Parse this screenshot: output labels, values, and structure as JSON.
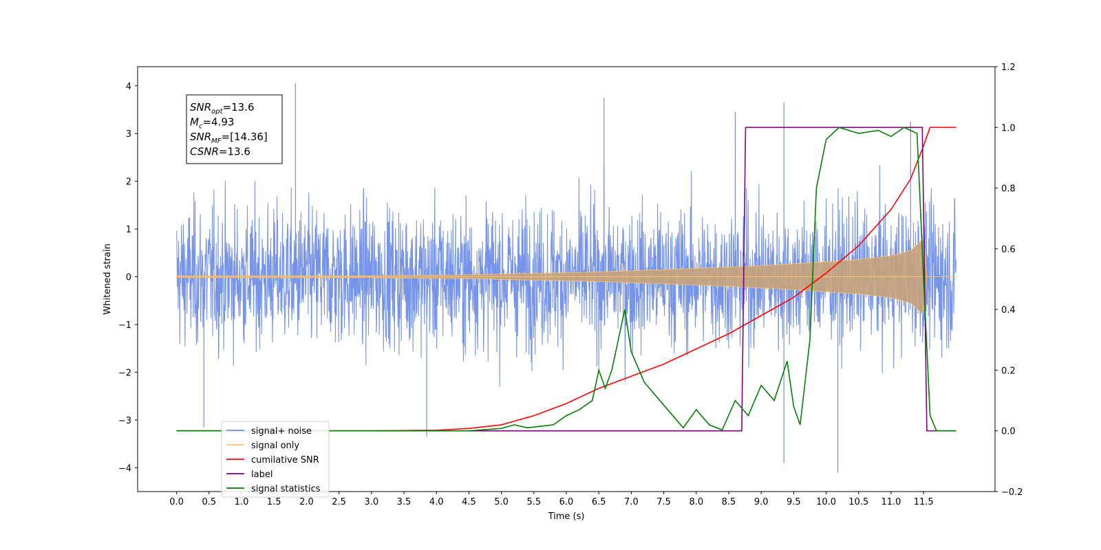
{
  "chart_data": {
    "type": "line",
    "xlabel": "Time (s)",
    "ylabel": "Whitened strain",
    "xlim": [
      -0.6,
      12.6
    ],
    "ylim": [
      -4.5,
      4.4
    ],
    "ylim_right": [
      -0.2,
      1.2
    ],
    "x_ticks": [
      "0.0",
      "0.5",
      "1.0",
      "1.5",
      "2.0",
      "2.5",
      "3.0",
      "3.5",
      "4.0",
      "4.5",
      "5.0",
      "5.5",
      "6.0",
      "6.5",
      "7.0",
      "7.5",
      "8.0",
      "8.5",
      "9.0",
      "9.5",
      "10.0",
      "10.5",
      "11.0",
      "11.5"
    ],
    "y_ticks_left": [
      "4",
      "3",
      "2",
      "1",
      "0",
      "−1",
      "−2",
      "−3",
      "−4"
    ],
    "y_ticks_right": [
      "1.2",
      "1.0",
      "0.8",
      "0.6",
      "0.4",
      "0.2",
      "0.0",
      "−0.2"
    ],
    "grid": false,
    "legend_position": "lower-left",
    "legend": [
      {
        "name": "signal+ noise",
        "color": "#6f8ee8"
      },
      {
        "name": "signal only",
        "color": "#ffc46b"
      },
      {
        "name": "cumilative SNR",
        "color": "#ff0000"
      },
      {
        "name": "label",
        "color": "#7b007b"
      },
      {
        "name": "signal statistics",
        "color": "#007f00"
      }
    ],
    "annotation": {
      "lines": [
        {
          "main": "SNR",
          "sub": "opt",
          "rest": "=13.6"
        },
        {
          "main": "M",
          "sub": "c",
          "rest": "=4.93"
        },
        {
          "main": "SNR",
          "sub": "MF",
          "rest": "=[14.36]"
        },
        {
          "main": "CSNR",
          "sub": "",
          "rest": "=13.6"
        }
      ]
    },
    "series": [
      {
        "name": "signal+ noise",
        "axis": "left",
        "color": "#6f8ee8",
        "x_range": [
          0.0,
          12.0
        ],
        "typical_amplitude": 1.6,
        "extreme_peaks": [
          {
            "x": 1.83,
            "y": 4.05
          },
          {
            "x": 6.58,
            "y": 3.75
          },
          {
            "x": 9.35,
            "y": 3.65
          },
          {
            "x": 8.6,
            "y": 3.45
          },
          {
            "x": 11.3,
            "y": 3.25
          },
          {
            "x": 9.35,
            "y": -3.9
          },
          {
            "x": 10.18,
            "y": -4.1
          },
          {
            "x": 3.85,
            "y": -3.35
          },
          {
            "x": 0.42,
            "y": -3.15
          }
        ]
      },
      {
        "name": "signal only",
        "axis": "left",
        "color": "#ffc46b",
        "envelope": [
          {
            "x": 0.0,
            "y": 0.02
          },
          {
            "x": 3.0,
            "y": 0.02
          },
          {
            "x": 4.5,
            "y": 0.04
          },
          {
            "x": 5.5,
            "y": 0.07
          },
          {
            "x": 6.5,
            "y": 0.1
          },
          {
            "x": 7.5,
            "y": 0.15
          },
          {
            "x": 8.5,
            "y": 0.2
          },
          {
            "x": 9.5,
            "y": 0.27
          },
          {
            "x": 10.5,
            "y": 0.36
          },
          {
            "x": 11.0,
            "y": 0.44
          },
          {
            "x": 11.3,
            "y": 0.55
          },
          {
            "x": 11.5,
            "y": 0.8
          },
          {
            "x": 11.55,
            "y": 0.0
          },
          {
            "x": 12.0,
            "y": 0.0
          }
        ]
      },
      {
        "name": "cumilative SNR",
        "axis": "right",
        "color": "#ff0000",
        "points": [
          {
            "x": 0.0,
            "y": 0.0
          },
          {
            "x": 3.0,
            "y": 0.0
          },
          {
            "x": 4.0,
            "y": 0.002
          },
          {
            "x": 4.5,
            "y": 0.008
          },
          {
            "x": 5.0,
            "y": 0.02
          },
          {
            "x": 5.5,
            "y": 0.05
          },
          {
            "x": 6.0,
            "y": 0.09
          },
          {
            "x": 6.5,
            "y": 0.14
          },
          {
            "x": 7.0,
            "y": 0.18
          },
          {
            "x": 7.5,
            "y": 0.22
          },
          {
            "x": 8.0,
            "y": 0.27
          },
          {
            "x": 8.5,
            "y": 0.32
          },
          {
            "x": 9.0,
            "y": 0.38
          },
          {
            "x": 9.5,
            "y": 0.44
          },
          {
            "x": 10.0,
            "y": 0.52
          },
          {
            "x": 10.5,
            "y": 0.61
          },
          {
            "x": 11.0,
            "y": 0.73
          },
          {
            "x": 11.3,
            "y": 0.83
          },
          {
            "x": 11.5,
            "y": 0.94
          },
          {
            "x": 11.6,
            "y": 1.0
          },
          {
            "x": 12.0,
            "y": 1.0
          }
        ]
      },
      {
        "name": "label",
        "axis": "right",
        "color": "#7b007b",
        "points": [
          {
            "x": 0.0,
            "y": 0.0
          },
          {
            "x": 8.7,
            "y": 0.0
          },
          {
            "x": 8.76,
            "y": 1.0
          },
          {
            "x": 11.48,
            "y": 1.0
          },
          {
            "x": 11.55,
            "y": 0.0
          },
          {
            "x": 12.0,
            "y": 0.0
          }
        ]
      },
      {
        "name": "signal statistics",
        "axis": "right",
        "color": "#007f00",
        "points": [
          {
            "x": 0.0,
            "y": 0.0
          },
          {
            "x": 4.5,
            "y": 0.0
          },
          {
            "x": 5.0,
            "y": 0.008
          },
          {
            "x": 5.2,
            "y": 0.02
          },
          {
            "x": 5.4,
            "y": 0.01
          },
          {
            "x": 5.6,
            "y": 0.015
          },
          {
            "x": 5.8,
            "y": 0.02
          },
          {
            "x": 6.0,
            "y": 0.05
          },
          {
            "x": 6.2,
            "y": 0.07
          },
          {
            "x": 6.4,
            "y": 0.1
          },
          {
            "x": 6.5,
            "y": 0.2
          },
          {
            "x": 6.6,
            "y": 0.14
          },
          {
            "x": 6.7,
            "y": 0.2
          },
          {
            "x": 6.8,
            "y": 0.3
          },
          {
            "x": 6.9,
            "y": 0.4
          },
          {
            "x": 7.0,
            "y": 0.26
          },
          {
            "x": 7.2,
            "y": 0.16
          },
          {
            "x": 7.4,
            "y": 0.11
          },
          {
            "x": 7.6,
            "y": 0.06
          },
          {
            "x": 7.8,
            "y": 0.01
          },
          {
            "x": 8.0,
            "y": 0.07
          },
          {
            "x": 8.2,
            "y": 0.02
          },
          {
            "x": 8.4,
            "y": 0.003
          },
          {
            "x": 8.6,
            "y": 0.1
          },
          {
            "x": 8.8,
            "y": 0.05
          },
          {
            "x": 9.0,
            "y": 0.15
          },
          {
            "x": 9.2,
            "y": 0.1
          },
          {
            "x": 9.4,
            "y": 0.23
          },
          {
            "x": 9.5,
            "y": 0.08
          },
          {
            "x": 9.6,
            "y": 0.02
          },
          {
            "x": 9.75,
            "y": 0.3
          },
          {
            "x": 9.85,
            "y": 0.8
          },
          {
            "x": 10.0,
            "y": 0.96
          },
          {
            "x": 10.2,
            "y": 1.0
          },
          {
            "x": 10.5,
            "y": 0.98
          },
          {
            "x": 10.8,
            "y": 0.99
          },
          {
            "x": 11.0,
            "y": 0.97
          },
          {
            "x": 11.2,
            "y": 1.0
          },
          {
            "x": 11.4,
            "y": 0.98
          },
          {
            "x": 11.5,
            "y": 0.5
          },
          {
            "x": 11.6,
            "y": 0.05
          },
          {
            "x": 11.7,
            "y": 0.0
          },
          {
            "x": 12.0,
            "y": 0.0
          }
        ]
      }
    ]
  }
}
